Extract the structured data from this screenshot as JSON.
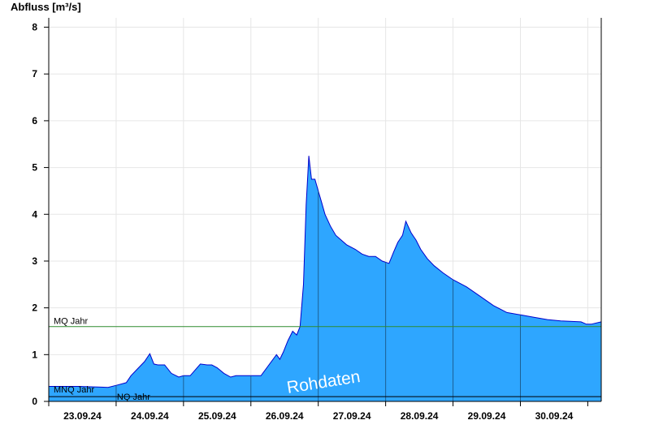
{
  "chart_data": {
    "type": "area",
    "ylabel": "Abfluss [m³/s]",
    "ylim": [
      0,
      8.2
    ],
    "yticks": [
      "0",
      "1",
      "2",
      "3",
      "4",
      "5",
      "6",
      "7",
      "8"
    ],
    "xlim": [
      0,
      8.2
    ],
    "xtick_labels": [
      "23.09.24",
      "24.09.24",
      "25.09.24",
      "26.09.24",
      "27.09.24",
      "28.09.24",
      "29.09.24",
      "30.09.24"
    ],
    "grid": true,
    "fill_color": "#2EA6FF",
    "line_color": "#0000CC",
    "reference_lines": [
      {
        "label": "MQ Jahr",
        "value": 1.6,
        "color": "#2E8B2E"
      },
      {
        "label": "MNQ Jahr",
        "value": 0.12,
        "color": "#000000"
      },
      {
        "label": "NQ Jahr",
        "value": 0.12,
        "color": "#000000"
      }
    ],
    "watermark": "Rohdaten",
    "series": [
      {
        "x": [
          0,
          0.45,
          0.88,
          1.02,
          1.15,
          1.22,
          1.32,
          1.42,
          1.5,
          1.56,
          1.62,
          1.72,
          1.82,
          1.93,
          2.0,
          2.1,
          2.25,
          2.35,
          2.42,
          2.5,
          2.6,
          2.7,
          2.78,
          2.9,
          3.0,
          3.15,
          3.38,
          3.43,
          3.48,
          3.55,
          3.62,
          3.68,
          3.73,
          3.78,
          3.82,
          3.86,
          3.9,
          3.95,
          4.0,
          4.05,
          4.1,
          4.18,
          4.26,
          4.34,
          4.42,
          4.55,
          4.65,
          4.75,
          4.85,
          4.95,
          5.05,
          5.12,
          5.18,
          5.25,
          5.3,
          5.38,
          5.45,
          5.52,
          5.62,
          5.72,
          5.85,
          6.0,
          6.2,
          6.4,
          6.6,
          6.8,
          7.0,
          7.2,
          7.4,
          7.6,
          7.9,
          7.98,
          8.05,
          8.2
        ],
        "y": [
          0.32,
          0.32,
          0.3,
          0.35,
          0.4,
          0.55,
          0.7,
          0.85,
          1.02,
          0.8,
          0.78,
          0.78,
          0.6,
          0.52,
          0.55,
          0.55,
          0.8,
          0.78,
          0.78,
          0.72,
          0.6,
          0.52,
          0.55,
          0.55,
          0.55,
          0.55,
          1.0,
          0.9,
          1.05,
          1.3,
          1.5,
          1.42,
          1.6,
          2.5,
          4.2,
          5.25,
          4.75,
          4.75,
          4.5,
          4.25,
          4.0,
          3.75,
          3.55,
          3.45,
          3.35,
          3.25,
          3.15,
          3.1,
          3.1,
          3.0,
          2.95,
          3.2,
          3.4,
          3.55,
          3.85,
          3.6,
          3.45,
          3.25,
          3.05,
          2.9,
          2.75,
          2.6,
          2.45,
          2.25,
          2.05,
          1.9,
          1.85,
          1.8,
          1.75,
          1.72,
          1.7,
          1.65,
          1.65,
          1.7
        ]
      }
    ]
  }
}
